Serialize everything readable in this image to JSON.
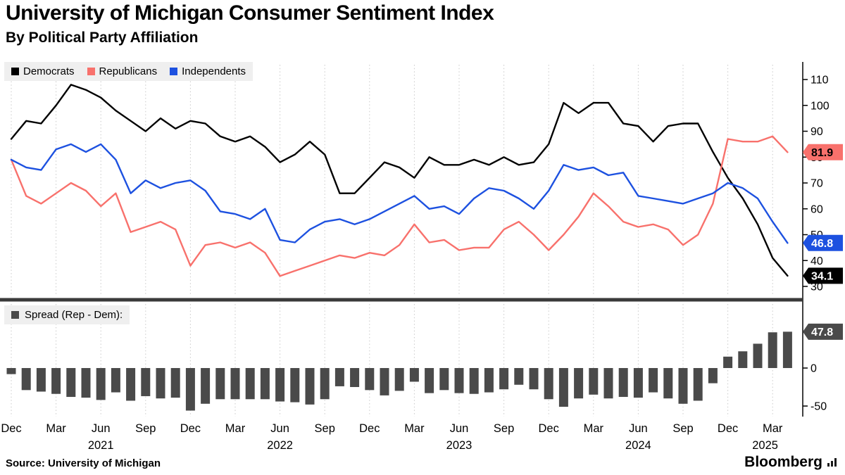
{
  "header": {
    "title": "University of Michigan Consumer Sentiment Index",
    "subtitle": "By Political Party Affiliation"
  },
  "footer": {
    "source": "Source: University of Michigan",
    "brand": "Bloomberg"
  },
  "colors": {
    "democrats": "#000000",
    "republicans": "#f8716c",
    "independents": "#1d51e0",
    "spread_bar": "#4a4a4a",
    "grid": "#c9c9c9",
    "axis": "#000000",
    "divider": "#3a3a3a",
    "legend_bg": "#efefef"
  },
  "x_axis": {
    "tick_months": [
      0,
      3,
      6,
      9,
      12,
      15,
      18,
      21,
      24,
      27,
      30,
      33,
      36,
      39,
      42,
      45,
      48,
      51
    ],
    "tick_labels": [
      "Dec",
      "Mar",
      "Jun",
      "Sep",
      "Dec",
      "Mar",
      "Jun",
      "Sep",
      "Dec",
      "Mar",
      "Jun",
      "Sep",
      "Dec",
      "Mar",
      "Jun",
      "Sep",
      "Dec",
      "Mar"
    ],
    "year_labels": [
      {
        "label": "2021",
        "month": 6
      },
      {
        "label": "2022",
        "month": 18
      },
      {
        "label": "2023",
        "month": 30
      },
      {
        "label": "2024",
        "month": 42
      },
      {
        "label": "2025",
        "month": 50.5
      }
    ]
  },
  "end_badges": [
    {
      "label": "81.9",
      "panel": "top",
      "value": 81.9,
      "bg": "#f8716c",
      "fg": "#000000"
    },
    {
      "label": "46.8",
      "panel": "top",
      "value": 46.8,
      "bg": "#1d51e0",
      "fg": "#ffffff"
    },
    {
      "label": "34.1",
      "panel": "top",
      "value": 34.1,
      "bg": "#000000",
      "fg": "#ffffff"
    },
    {
      "label": "47.8",
      "panel": "bottom",
      "value": 47.8,
      "bg": "#4a4a4a",
      "fg": "#ffffff"
    }
  ],
  "chart_data": [
    {
      "type": "line",
      "title": "Consumer sentiment by political party affiliation",
      "ylim": [
        28,
        114
      ],
      "yticks": [
        110,
        100,
        90,
        80,
        70,
        60,
        50,
        40,
        30
      ],
      "grid": "vertical-dotted",
      "legend_position": "top-left",
      "x_months": [
        "Dec 2020",
        "Jan 2021",
        "Feb 2021",
        "Mar 2021",
        "Apr 2021",
        "May 2021",
        "Jun 2021",
        "Jul 2021",
        "Aug 2021",
        "Sep 2021",
        "Oct 2021",
        "Nov 2021",
        "Dec 2021",
        "Jan 2022",
        "Feb 2022",
        "Mar 2022",
        "Apr 2022",
        "May 2022",
        "Jun 2022",
        "Jul 2022",
        "Aug 2022",
        "Sep 2022",
        "Oct 2022",
        "Nov 2022",
        "Dec 2022",
        "Jan 2023",
        "Feb 2023",
        "Mar 2023",
        "Apr 2023",
        "May 2023",
        "Jun 2023",
        "Jul 2023",
        "Aug 2023",
        "Sep 2023",
        "Oct 2023",
        "Nov 2023",
        "Dec 2023",
        "Jan 2024",
        "Feb 2024",
        "Mar 2024",
        "Apr 2024",
        "May 2024",
        "Jun 2024",
        "Jul 2024",
        "Aug 2024",
        "Sep 2024",
        "Oct 2024",
        "Nov 2024",
        "Dec 2024",
        "Jan 2025",
        "Feb 2025",
        "Mar 2025",
        "Apr 2025"
      ],
      "series": [
        {
          "name": "Democrats",
          "color_key": "democrats",
          "last_value_label": "34.1",
          "values": [
            87,
            94,
            93,
            100,
            108,
            106,
            103,
            98,
            94,
            90,
            95,
            91,
            94,
            93,
            88,
            86,
            88,
            84,
            78,
            81,
            86,
            81,
            66,
            66,
            72,
            78,
            76,
            72,
            80,
            77,
            77,
            79,
            77,
            80,
            77,
            78,
            85,
            101,
            97,
            101,
            101,
            93,
            92,
            86,
            92,
            93,
            93,
            82,
            72,
            64,
            54,
            41,
            34.1
          ]
        },
        {
          "name": "Republicans",
          "color_key": "republicans",
          "last_value_label": "81.9",
          "values": [
            79,
            65,
            62,
            66,
            70,
            67,
            61,
            66,
            51,
            53,
            55,
            52,
            38,
            46,
            47,
            45,
            47,
            43,
            34,
            36,
            38,
            40,
            42,
            41,
            43,
            42,
            46,
            54,
            47,
            48,
            44,
            45,
            45,
            52,
            55,
            50,
            44,
            50,
            57,
            66,
            61,
            55,
            53,
            54,
            52,
            46,
            50,
            62,
            87,
            86,
            86,
            88,
            81.9
          ]
        },
        {
          "name": "Independents",
          "color_key": "independents",
          "last_value_label": "46.8",
          "values": [
            79,
            76,
            75,
            83,
            85,
            82,
            85,
            79,
            66,
            71,
            68,
            70,
            71,
            67,
            59,
            58,
            56,
            60,
            48,
            47,
            52,
            55,
            56,
            54,
            56,
            59,
            62,
            65,
            60,
            61,
            58,
            64,
            68,
            67,
            64,
            60,
            67,
            77,
            75,
            76,
            73,
            74,
            65,
            64,
            63,
            62,
            64,
            66,
            70,
            68,
            64,
            55,
            46.8
          ]
        }
      ]
    },
    {
      "type": "bar",
      "name": "Spread (Rep - Dem):",
      "ylim": [
        -62,
        58
      ],
      "yticks": [
        0,
        -50
      ],
      "last_value_label": "47.8",
      "values": [
        -8,
        -29,
        -31,
        -34,
        -38,
        -39,
        -42,
        -32,
        -43,
        -37,
        -40,
        -39,
        -56,
        -47,
        -41,
        -41,
        -41,
        -41,
        -44,
        -45,
        -48,
        -41,
        -24,
        -25,
        -29,
        -36,
        -30,
        -18,
        -33,
        -29,
        -33,
        -34,
        -32,
        -28,
        -22,
        -28,
        -41,
        -51,
        -40,
        -35,
        -40,
        -38,
        -39,
        -32,
        -40,
        -47,
        -43,
        -20,
        15,
        22,
        32,
        47,
        47.8
      ]
    }
  ]
}
